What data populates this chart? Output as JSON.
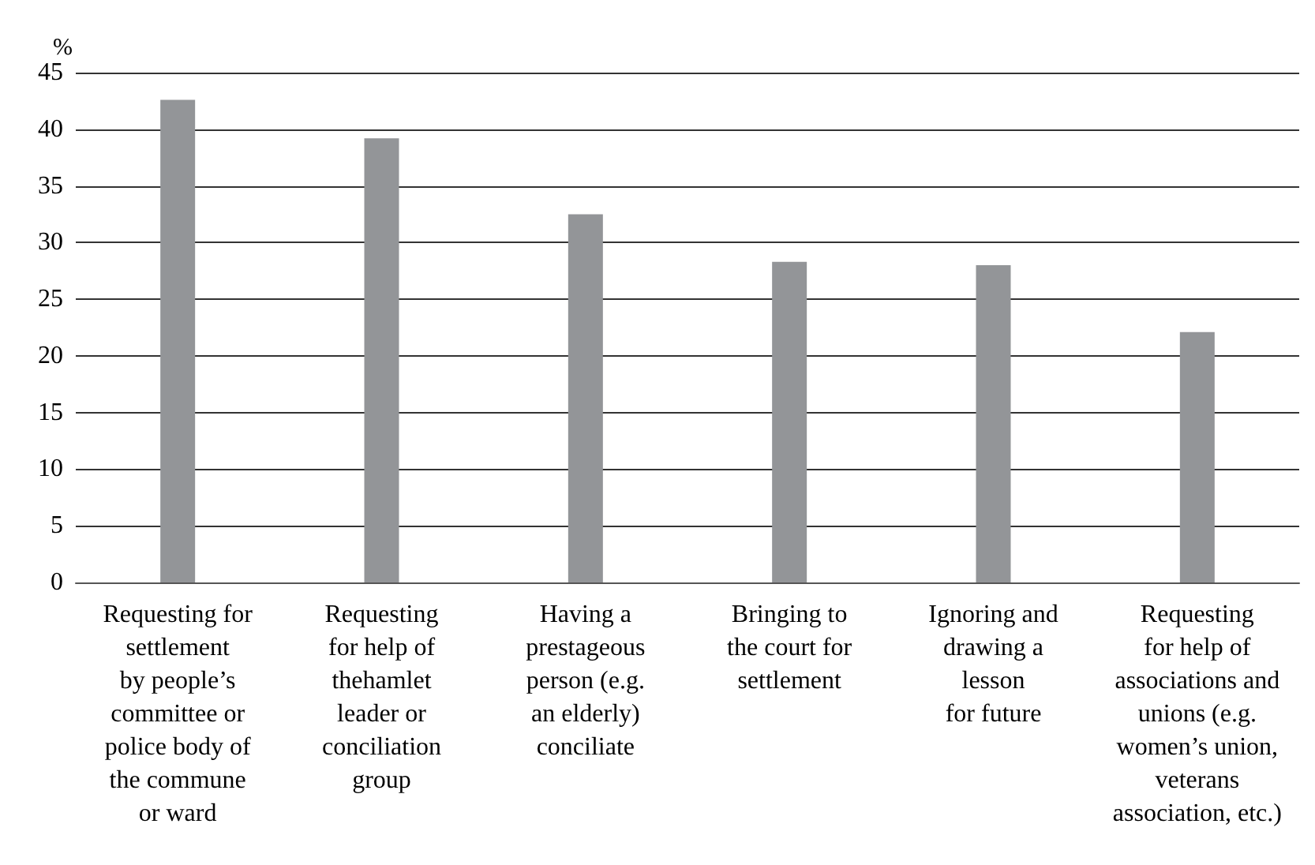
{
  "chart_data": {
    "type": "bar",
    "ylabel": "%",
    "categories": [
      "Requesting for\nsettlement\nby people’s\ncommittee or\npolice body of\nthe commune\nor ward",
      "Requesting\nfor help of\nthehamlet\nleader or\nconciliation\ngroup",
      "Having a\nprestageous\nperson (e.g.\nan elderly)\nconciliate",
      "Bringing to\nthe court for\nsettlement",
      "Ignoring and\ndrawing a\nlesson\nfor future",
      "Requesting\nfor help of\nassociations and\nunions (e.g.\nwomen’s union,\nveterans\nassociation, etc.)"
    ],
    "values": [
      42.6,
      39.2,
      32.5,
      28.3,
      28.0,
      22.1
    ],
    "color": "#939598",
    "ylim": [
      0,
      45
    ],
    "yticks": [
      0,
      5,
      10,
      15,
      20,
      25,
      30,
      35,
      40,
      45
    ],
    "grid": "y"
  }
}
